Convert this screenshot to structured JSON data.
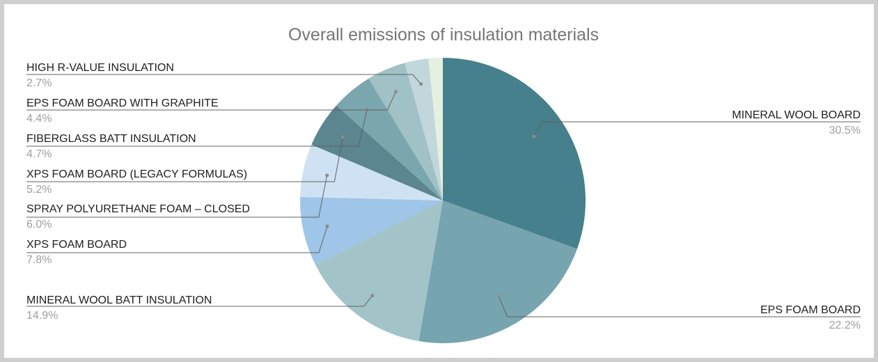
{
  "chart_data": {
    "type": "pie",
    "title": "Overall emissions of insulation materials",
    "slices": [
      {
        "label": "MINERAL WOOL BOARD",
        "value": 30.5,
        "pct_label": "30.5%",
        "color": "#46808c"
      },
      {
        "label": "EPS FOAM BOARD",
        "value": 22.2,
        "pct_label": "22.2%",
        "color": "#76a5af"
      },
      {
        "label": "MINERAL WOOL BATT INSULATION",
        "value": 14.9,
        "pct_label": "14.9%",
        "color": "#a2c4c9"
      },
      {
        "label": "XPS FOAM BOARD",
        "value": 7.8,
        "pct_label": "7.8%",
        "color": "#9fc5e8"
      },
      {
        "label": "SPRAY POLYURETHANE FOAM – CLOSED",
        "value": 6.0,
        "pct_label": "6.0%",
        "color": "#cfe2f3"
      },
      {
        "label": "XPS FOAM BOARD (LEGACY FORMULAS)",
        "value": 5.2,
        "pct_label": "5.2%",
        "color": "#5b858f"
      },
      {
        "label": "FIBERGLASS BATT INSULATION",
        "value": 4.7,
        "pct_label": "4.7%",
        "color": "#7aa6ae"
      },
      {
        "label": "EPS FOAM BOARD WITH GRAPHITE",
        "value": 4.4,
        "pct_label": "4.4%",
        "color": "#a0c1c6"
      },
      {
        "label": "HIGH R-VALUE INSULATION",
        "value": 2.7,
        "pct_label": "2.7%",
        "color": "#c1d7dc"
      },
      {
        "label": "",
        "value": 1.6,
        "pct_label": "",
        "color": "#e6f0e0"
      }
    ],
    "legend": "none",
    "label_style": "callout lines with label and percentage"
  }
}
